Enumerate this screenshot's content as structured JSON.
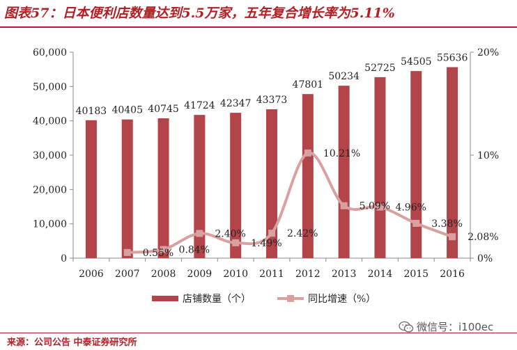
{
  "header": {
    "title": "图表57：日本便利店数量达到5.5万家，五年复合增长率为5.11%"
  },
  "footer": {
    "source": "来源：公司公告 中泰证券研究所",
    "watermark": "微信号：i100ec",
    "watermark_icon": "wechat-icon"
  },
  "chart_data": {
    "type": "bar",
    "categories": [
      "2006",
      "2007",
      "2008",
      "2009",
      "2010",
      "2011",
      "2012",
      "2013",
      "2014",
      "2015",
      "2016"
    ],
    "series": [
      {
        "name": "店铺数量（个）",
        "type": "bar",
        "axis": "left",
        "color": "#b3444a",
        "values": [
          40183,
          40405,
          40745,
          41724,
          42347,
          43373,
          47801,
          50234,
          52725,
          54505,
          55636
        ],
        "labels": [
          "40183",
          "40405",
          "40745",
          "41724",
          "42347",
          "43373",
          "47801",
          "50234",
          "52725",
          "54505",
          "55636"
        ]
      },
      {
        "name": "同比增速（%）",
        "type": "line",
        "axis": "right",
        "color": "#d9a0a0",
        "values": [
          null,
          0.55,
          0.84,
          2.4,
          1.49,
          2.42,
          10.21,
          5.09,
          4.96,
          3.38,
          2.08
        ],
        "labels": [
          "",
          "0.55%",
          "0.84%",
          "2.40%",
          "1.49%",
          "2.42%",
          "10.21%",
          "5.09%",
          "4.96%",
          "3.38%",
          "2.08%"
        ]
      }
    ],
    "y_left": {
      "ylim": [
        0,
        60000
      ],
      "ticks": [
        0,
        10000,
        20000,
        30000,
        40000,
        50000,
        60000
      ],
      "tick_labels": [
        "0",
        "10,000",
        "20,000",
        "30,000",
        "40,000",
        "50,000",
        "60,000"
      ]
    },
    "y_right": {
      "ylim": [
        0,
        20
      ],
      "ticks": [
        0,
        10,
        20
      ],
      "tick_labels": [
        "0%",
        "10%",
        "20%"
      ]
    },
    "legend": {
      "placement": "bottom",
      "items": [
        "店铺数量（个）",
        "同比增速（%）"
      ]
    },
    "grid": false
  }
}
